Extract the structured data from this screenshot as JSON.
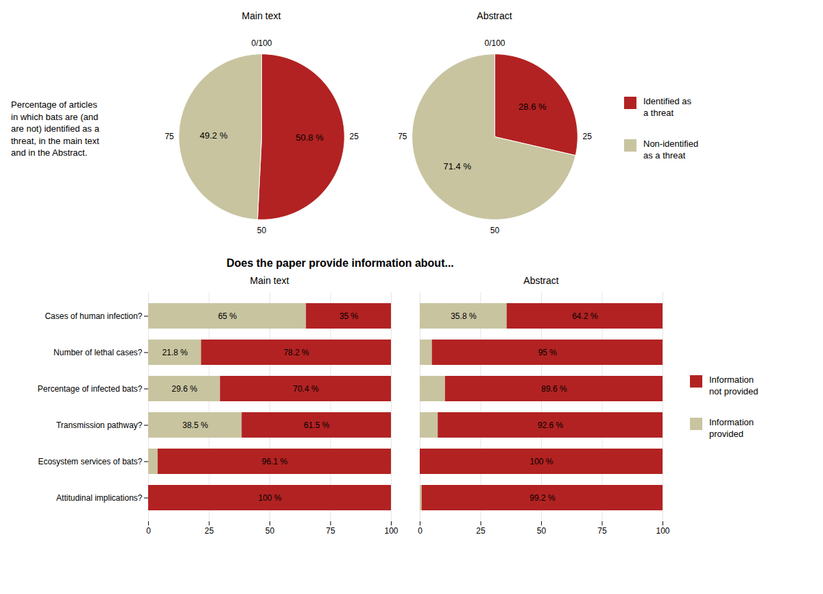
{
  "chart_data": [
    {
      "type": "pie",
      "title": "Main text",
      "categories": [
        "Identified as\na threat",
        "Non-identified\nas a threat"
      ],
      "values": [
        50.8,
        49.2
      ],
      "value_labels": [
        "50.8 %",
        "49.2 %"
      ],
      "colors": [
        "#b22222",
        "#c8c4a0"
      ],
      "data_labels": true,
      "xlim": [
        0,
        100
      ],
      "xticks": [
        {
          "value": 0,
          "label": "0/100"
        },
        25,
        50,
        75
      ],
      "legend": "right",
      "annotations": [
        "Percentage of articles\nin which bats are (and\nare not) identified as a\nthreat, in the main text\nand in the Abstract."
      ]
    },
    {
      "type": "pie",
      "title": "Abstract",
      "categories": [
        "Identified as\na threat",
        "Non-identified\nas a threat"
      ],
      "values": [
        28.6,
        71.4
      ],
      "value_labels": [
        "28.6 %",
        "71.4 %"
      ],
      "colors": [
        "#b22222",
        "#c8c4a0"
      ],
      "data_labels": true,
      "xlim": [
        0,
        100
      ],
      "xticks": [
        {
          "value": 0,
          "label": "0/100"
        },
        25,
        50,
        75
      ]
    },
    {
      "type": "bar",
      "orientation": "horizontal",
      "stacked": true,
      "title": "Main text",
      "categories": [
        "Cases of human infection?",
        "Number of lethal cases?",
        "Percentage of infected bats?",
        "Transmission pathway?",
        "Ecosystem services of bats?",
        "Attitudinal implications?"
      ],
      "series": [
        {
          "name": "Information\nprovided",
          "color": "#c8c4a0",
          "values": [
            65,
            21.8,
            29.6,
            38.5,
            3.9,
            0
          ],
          "value_labels": [
            "65 %",
            "21.8 %",
            "29.6 %",
            "38.5 %",
            null,
            null
          ]
        },
        {
          "name": "Information\nnot provided",
          "color": "#b22222",
          "values": [
            35,
            78.2,
            70.4,
            61.5,
            96.1,
            100
          ],
          "value_labels": [
            "35 %",
            "78.2 %",
            "70.4 %",
            "61.5 %",
            "96.1 %",
            "100 %"
          ]
        }
      ],
      "xlim": [
        0,
        100
      ],
      "xticks": [
        0,
        25,
        50,
        75,
        100
      ],
      "grid": true,
      "data_labels": true,
      "legend": "right",
      "annotations": [
        "Does the paper provide information about..."
      ]
    },
    {
      "type": "bar",
      "orientation": "horizontal",
      "stacked": true,
      "title": "Abstract",
      "categories": [
        "Cases of human infection?",
        "Number of lethal cases?",
        "Percentage of infected bats?",
        "Transmission pathway?",
        "Ecosystem services of bats?",
        "Attitudinal implications?"
      ],
      "series": [
        {
          "name": "Information\nprovided",
          "color": "#c8c4a0",
          "values": [
            35.8,
            5,
            10.4,
            7.4,
            0,
            0.8
          ],
          "value_labels": [
            "35.8 %",
            null,
            null,
            null,
            null,
            null
          ]
        },
        {
          "name": "Information\nnot provided",
          "color": "#b22222",
          "values": [
            64.2,
            95,
            89.6,
            92.6,
            100,
            99.2
          ],
          "value_labels": [
            "64.2 %",
            "95 %",
            "89.6 %",
            "92.6 %",
            "100 %",
            "99.2 %"
          ]
        }
      ],
      "xlim": [
        0,
        100
      ],
      "xticks": [
        0,
        25,
        50,
        75,
        100
      ],
      "grid": true,
      "data_labels": true,
      "tick_labels": "x"
    }
  ]
}
